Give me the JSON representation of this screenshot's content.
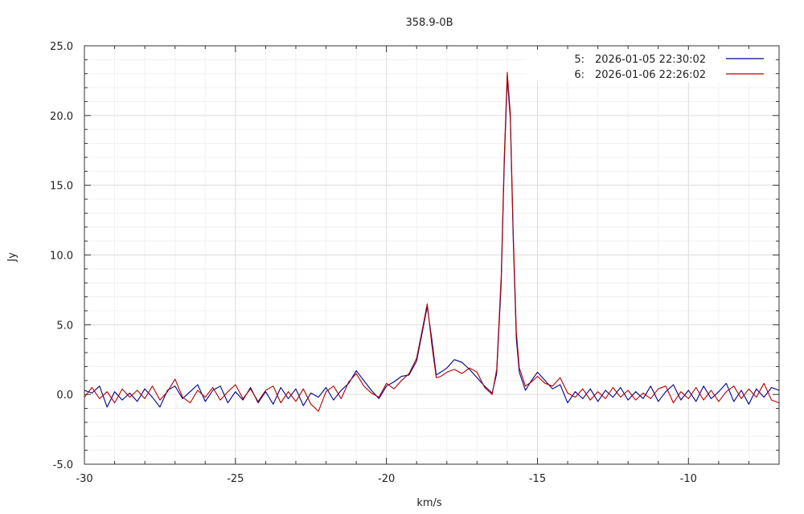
{
  "chart_data": {
    "type": "line",
    "title": "358.9-0B",
    "xlabel": "km/s",
    "ylabel": "Jy",
    "xlim": [
      -30,
      -7
    ],
    "ylim": [
      -5,
      25
    ],
    "x_ticks": [
      {
        "value": -30,
        "label": "-30"
      },
      {
        "value": -25,
        "label": "-25"
      },
      {
        "value": -20,
        "label": "-20"
      },
      {
        "value": -15,
        "label": "-15"
      },
      {
        "value": -10,
        "label": "-10"
      }
    ],
    "y_ticks": [
      {
        "value": -5,
        "label": "-5.0"
      },
      {
        "value": 0,
        "label": "0.0"
      },
      {
        "value": 5,
        "label": "5.0"
      },
      {
        "value": 10,
        "label": "10.0"
      },
      {
        "value": 15,
        "label": "15.0"
      },
      {
        "value": 20,
        "label": "20.0"
      },
      {
        "value": 25,
        "label": "25.0"
      }
    ],
    "grid": true,
    "legend_position": "top-right",
    "series": [
      {
        "index": "5:",
        "name": "2026-01-05 22:30:02",
        "color": "#00008b",
        "points": [
          [
            -30.0,
            0.3
          ],
          [
            -29.75,
            0.1
          ],
          [
            -29.5,
            0.6
          ],
          [
            -29.25,
            -0.9
          ],
          [
            -29.0,
            0.2
          ],
          [
            -28.75,
            -0.4
          ],
          [
            -28.5,
            0.1
          ],
          [
            -28.25,
            -0.5
          ],
          [
            -28.0,
            0.4
          ],
          [
            -27.75,
            -0.2
          ],
          [
            -27.5,
            -0.9
          ],
          [
            -27.25,
            0.3
          ],
          [
            -27.0,
            0.6
          ],
          [
            -26.75,
            -0.3
          ],
          [
            -26.5,
            0.2
          ],
          [
            -26.25,
            0.7
          ],
          [
            -26.0,
            -0.5
          ],
          [
            -25.75,
            0.3
          ],
          [
            -25.5,
            0.6
          ],
          [
            -25.25,
            -0.6
          ],
          [
            -25.0,
            0.2
          ],
          [
            -24.75,
            -0.4
          ],
          [
            -24.5,
            0.5
          ],
          [
            -24.25,
            -0.6
          ],
          [
            -24.0,
            0.2
          ],
          [
            -23.75,
            -0.7
          ],
          [
            -23.5,
            0.5
          ],
          [
            -23.25,
            -0.3
          ],
          [
            -23.0,
            0.4
          ],
          [
            -22.75,
            -0.8
          ],
          [
            -22.5,
            0.1
          ],
          [
            -22.25,
            -0.2
          ],
          [
            -22.0,
            0.5
          ],
          [
            -21.75,
            -0.4
          ],
          [
            -21.5,
            0.3
          ],
          [
            -21.25,
            0.8
          ],
          [
            -21.0,
            1.7
          ],
          [
            -20.75,
            1.0
          ],
          [
            -20.5,
            0.3
          ],
          [
            -20.25,
            -0.3
          ],
          [
            -20.0,
            0.6
          ],
          [
            -19.75,
            0.9
          ],
          [
            -19.5,
            1.3
          ],
          [
            -19.25,
            1.4
          ],
          [
            -19.0,
            2.4
          ],
          [
            -18.8,
            4.6
          ],
          [
            -18.65,
            6.3
          ],
          [
            -18.5,
            4.0
          ],
          [
            -18.35,
            1.4
          ],
          [
            -18.2,
            1.6
          ],
          [
            -18.0,
            1.9
          ],
          [
            -17.75,
            2.5
          ],
          [
            -17.5,
            2.3
          ],
          [
            -17.25,
            1.8
          ],
          [
            -17.0,
            1.2
          ],
          [
            -16.75,
            0.6
          ],
          [
            -16.5,
            0.1
          ],
          [
            -16.35,
            1.5
          ],
          [
            -16.2,
            8.0
          ],
          [
            -16.1,
            16.5
          ],
          [
            -16.0,
            22.7
          ],
          [
            -15.9,
            19.8
          ],
          [
            -15.8,
            11.0
          ],
          [
            -15.7,
            4.0
          ],
          [
            -15.6,
            1.6
          ],
          [
            -15.4,
            0.3
          ],
          [
            -15.2,
            1.0
          ],
          [
            -15.0,
            1.6
          ],
          [
            -14.75,
            1.0
          ],
          [
            -14.5,
            0.4
          ],
          [
            -14.25,
            0.7
          ],
          [
            -14.0,
            -0.6
          ],
          [
            -13.75,
            0.2
          ],
          [
            -13.5,
            -0.3
          ],
          [
            -13.25,
            0.4
          ],
          [
            -13.0,
            -0.5
          ],
          [
            -12.75,
            0.3
          ],
          [
            -12.5,
            -0.2
          ],
          [
            -12.25,
            0.5
          ],
          [
            -12.0,
            -0.4
          ],
          [
            -11.75,
            0.2
          ],
          [
            -11.5,
            -0.3
          ],
          [
            -11.25,
            0.6
          ],
          [
            -11.0,
            -0.5
          ],
          [
            -10.75,
            0.2
          ],
          [
            -10.5,
            0.7
          ],
          [
            -10.25,
            -0.4
          ],
          [
            -10.0,
            0.3
          ],
          [
            -9.75,
            -0.5
          ],
          [
            -9.5,
            0.6
          ],
          [
            -9.25,
            -0.3
          ],
          [
            -9.0,
            0.2
          ],
          [
            -8.75,
            0.8
          ],
          [
            -8.5,
            -0.5
          ],
          [
            -8.25,
            0.3
          ],
          [
            -8.0,
            -0.7
          ],
          [
            -7.75,
            0.4
          ],
          [
            -7.5,
            -0.2
          ],
          [
            -7.25,
            0.5
          ],
          [
            -7.0,
            0.3
          ]
        ]
      },
      {
        "index": "6:",
        "name": "2026-01-06 22:26:02",
        "color": "#b20000",
        "points": [
          [
            -30.0,
            -0.2
          ],
          [
            -29.75,
            0.5
          ],
          [
            -29.5,
            -0.3
          ],
          [
            -29.25,
            0.2
          ],
          [
            -29.0,
            -0.6
          ],
          [
            -28.75,
            0.4
          ],
          [
            -28.5,
            -0.2
          ],
          [
            -28.25,
            0.3
          ],
          [
            -28.0,
            -0.3
          ],
          [
            -27.75,
            0.6
          ],
          [
            -27.5,
            -0.4
          ],
          [
            -27.25,
            0.2
          ],
          [
            -27.0,
            1.1
          ],
          [
            -26.75,
            -0.2
          ],
          [
            -26.5,
            -0.6
          ],
          [
            -26.25,
            0.3
          ],
          [
            -26.0,
            -0.2
          ],
          [
            -25.75,
            0.5
          ],
          [
            -25.5,
            -0.4
          ],
          [
            -25.25,
            0.2
          ],
          [
            -25.0,
            0.7
          ],
          [
            -24.75,
            -0.3
          ],
          [
            -24.5,
            0.4
          ],
          [
            -24.25,
            -0.5
          ],
          [
            -24.0,
            0.3
          ],
          [
            -23.75,
            0.6
          ],
          [
            -23.5,
            -0.6
          ],
          [
            -23.25,
            0.2
          ],
          [
            -23.0,
            -0.5
          ],
          [
            -22.75,
            0.4
          ],
          [
            -22.5,
            -0.7
          ],
          [
            -22.25,
            -1.2
          ],
          [
            -22.0,
            0.2
          ],
          [
            -21.75,
            0.6
          ],
          [
            -21.5,
            -0.3
          ],
          [
            -21.25,
            0.9
          ],
          [
            -21.0,
            1.5
          ],
          [
            -20.75,
            0.6
          ],
          [
            -20.5,
            0.1
          ],
          [
            -20.25,
            -0.2
          ],
          [
            -20.0,
            0.8
          ],
          [
            -19.75,
            0.4
          ],
          [
            -19.5,
            1.0
          ],
          [
            -19.25,
            1.5
          ],
          [
            -19.0,
            2.6
          ],
          [
            -18.8,
            4.8
          ],
          [
            -18.65,
            6.5
          ],
          [
            -18.5,
            3.6
          ],
          [
            -18.35,
            1.2
          ],
          [
            -18.2,
            1.3
          ],
          [
            -18.0,
            1.6
          ],
          [
            -17.75,
            1.8
          ],
          [
            -17.5,
            1.5
          ],
          [
            -17.25,
            1.9
          ],
          [
            -17.0,
            1.6
          ],
          [
            -16.75,
            0.5
          ],
          [
            -16.5,
            0.0
          ],
          [
            -16.35,
            1.8
          ],
          [
            -16.2,
            8.5
          ],
          [
            -16.1,
            17.0
          ],
          [
            -16.0,
            23.1
          ],
          [
            -15.9,
            20.2
          ],
          [
            -15.8,
            11.5
          ],
          [
            -15.7,
            4.5
          ],
          [
            -15.6,
            1.9
          ],
          [
            -15.4,
            0.6
          ],
          [
            -15.2,
            0.9
          ],
          [
            -15.0,
            1.3
          ],
          [
            -14.75,
            0.8
          ],
          [
            -14.5,
            0.6
          ],
          [
            -14.25,
            1.2
          ],
          [
            -14.0,
            0.1
          ],
          [
            -13.75,
            -0.2
          ],
          [
            -13.5,
            0.4
          ],
          [
            -13.25,
            -0.4
          ],
          [
            -13.0,
            0.2
          ],
          [
            -12.75,
            -0.3
          ],
          [
            -12.5,
            0.5
          ],
          [
            -12.25,
            -0.2
          ],
          [
            -12.0,
            0.3
          ],
          [
            -11.75,
            -0.4
          ],
          [
            -11.5,
            0.1
          ],
          [
            -11.25,
            -0.3
          ],
          [
            -11.0,
            0.4
          ],
          [
            -10.75,
            0.6
          ],
          [
            -10.5,
            -0.6
          ],
          [
            -10.25,
            0.2
          ],
          [
            -10.0,
            -0.3
          ],
          [
            -9.75,
            0.5
          ],
          [
            -9.5,
            -0.4
          ],
          [
            -9.25,
            0.3
          ],
          [
            -9.0,
            -0.5
          ],
          [
            -8.75,
            0.2
          ],
          [
            -8.5,
            0.6
          ],
          [
            -8.25,
            -0.3
          ],
          [
            -8.0,
            0.4
          ],
          [
            -7.75,
            -0.2
          ],
          [
            -7.5,
            0.8
          ],
          [
            -7.25,
            -0.4
          ],
          [
            -7.0,
            -0.6
          ]
        ]
      }
    ]
  }
}
